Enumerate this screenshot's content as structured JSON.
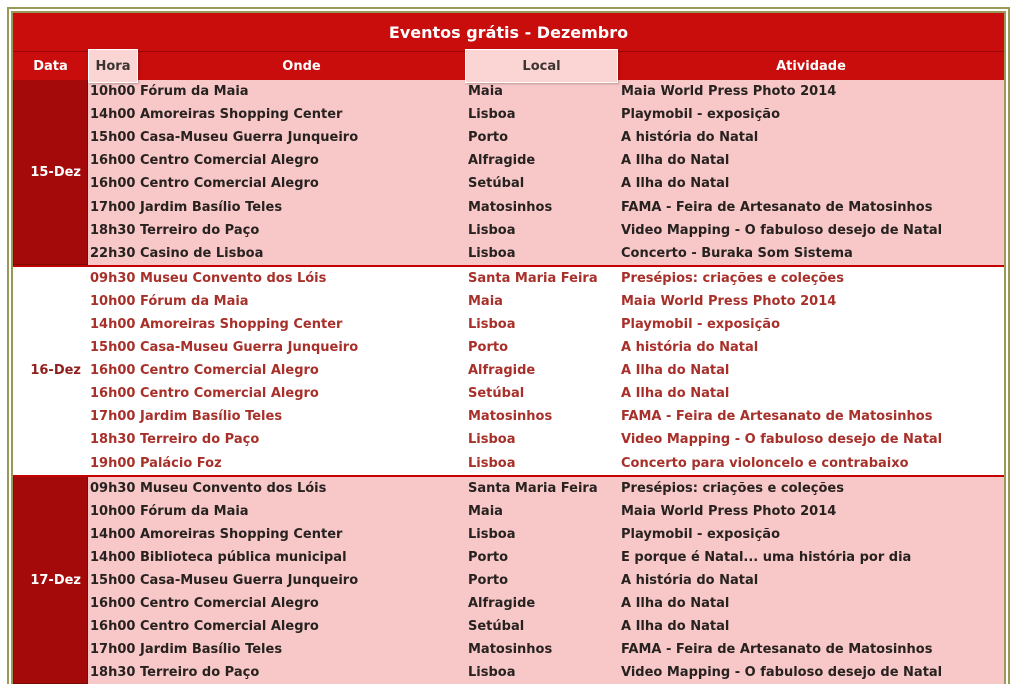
{
  "title": "Eventos grátis - Dezembro",
  "colors": {
    "header_red": "#c90d0d",
    "date_cell_red": "#a50a0a",
    "section_pink": "#f8c8c8",
    "selected_header_pink": "#fbd4d4",
    "section_separator_red": "#c40000",
    "outer_border_olive": "#9a9a58",
    "pink_section_text": "#272220",
    "white_section_text": "#a8302a"
  },
  "columns": [
    {
      "key": "data",
      "label": "Data",
      "highlighted": false
    },
    {
      "key": "hora",
      "label": "Hora",
      "highlighted": true
    },
    {
      "key": "onde",
      "label": "Onde",
      "highlighted": false
    },
    {
      "key": "local",
      "label": "Local",
      "highlighted": true
    },
    {
      "key": "atividade",
      "label": "Atividade",
      "highlighted": false
    }
  ],
  "sections": [
    {
      "date": "15-Dez",
      "style": "pink",
      "rows": [
        {
          "hora": "10h00",
          "onde": "Fórum da Maia",
          "local": "Maia",
          "atividade": "Maia World Press Photo 2014"
        },
        {
          "hora": "14h00",
          "onde": "Amoreiras Shopping Center",
          "local": "Lisboa",
          "atividade": "Playmobil - exposição"
        },
        {
          "hora": "15h00",
          "onde": "Casa-Museu Guerra Junqueiro",
          "local": "Porto",
          "atividade": "A história do Natal"
        },
        {
          "hora": "16h00",
          "onde": "Centro Comercial Alegro",
          "local": "Alfragide",
          "atividade": "A Ilha do Natal"
        },
        {
          "hora": "16h00",
          "onde": "Centro Comercial Alegro",
          "local": "Setúbal",
          "atividade": "A Ilha do Natal"
        },
        {
          "hora": "17h00",
          "onde": "Jardim Basílio Teles",
          "local": "Matosinhos",
          "atividade": "FAMA - Feira de Artesanato de Matosinhos"
        },
        {
          "hora": "18h30",
          "onde": "Terreiro do Paço",
          "local": "Lisboa",
          "atividade": "Video Mapping - O fabuloso desejo de Natal"
        },
        {
          "hora": "22h30",
          "onde": "Casino de Lisboa",
          "local": "Lisboa",
          "atividade": "Concerto - Buraka Som Sistema"
        }
      ]
    },
    {
      "date": "16-Dez",
      "style": "white",
      "rows": [
        {
          "hora": "09h30",
          "onde": "Museu Convento dos Lóis",
          "local": "Santa Maria Feira",
          "atividade": "Presépios: criações e coleções"
        },
        {
          "hora": "10h00",
          "onde": "Fórum da Maia",
          "local": "Maia",
          "atividade": "Maia World Press Photo 2014"
        },
        {
          "hora": "14h00",
          "onde": "Amoreiras Shopping Center",
          "local": "Lisboa",
          "atividade": "Playmobil - exposição"
        },
        {
          "hora": "15h00",
          "onde": "Casa-Museu Guerra Junqueiro",
          "local": "Porto",
          "atividade": "A história do Natal"
        },
        {
          "hora": "16h00",
          "onde": "Centro Comercial Alegro",
          "local": "Alfragide",
          "atividade": "A Ilha do Natal"
        },
        {
          "hora": "16h00",
          "onde": "Centro Comercial Alegro",
          "local": "Setúbal",
          "atividade": "A Ilha do Natal"
        },
        {
          "hora": "17h00",
          "onde": "Jardim Basílio Teles",
          "local": "Matosinhos",
          "atividade": "FAMA - Feira de Artesanato de Matosinhos"
        },
        {
          "hora": "18h30",
          "onde": "Terreiro do Paço",
          "local": "Lisboa",
          "atividade": "Video Mapping - O fabuloso desejo de Natal"
        },
        {
          "hora": "19h00",
          "onde": "Palácio Foz",
          "local": "Lisboa",
          "atividade": "Concerto para violoncelo e contrabaixo"
        }
      ]
    },
    {
      "date": "17-Dez",
      "style": "pink",
      "rows": [
        {
          "hora": "09h30",
          "onde": "Museu Convento dos Lóis",
          "local": "Santa Maria Feira",
          "atividade": "Presépios: criações e coleções"
        },
        {
          "hora": "10h00",
          "onde": "Fórum da Maia",
          "local": "Maia",
          "atividade": "Maia World Press Photo 2014"
        },
        {
          "hora": "14h00",
          "onde": "Amoreiras Shopping Center",
          "local": "Lisboa",
          "atividade": "Playmobil - exposição"
        },
        {
          "hora": "14h00",
          "onde": "Biblioteca pública municipal",
          "local": "Porto",
          "atividade": "E porque é Natal... uma história por dia"
        },
        {
          "hora": "15h00",
          "onde": "Casa-Museu Guerra Junqueiro",
          "local": "Porto",
          "atividade": "A história do Natal"
        },
        {
          "hora": "16h00",
          "onde": "Centro Comercial Alegro",
          "local": "Alfragide",
          "atividade": "A Ilha do Natal"
        },
        {
          "hora": "16h00",
          "onde": "Centro Comercial Alegro",
          "local": "Setúbal",
          "atividade": "A Ilha do Natal"
        },
        {
          "hora": "17h00",
          "onde": "Jardim Basílio Teles",
          "local": "Matosinhos",
          "atividade": "FAMA - Feira de Artesanato de Matosinhos"
        },
        {
          "hora": "18h30",
          "onde": "Terreiro do Paço",
          "local": "Lisboa",
          "atividade": "Video Mapping - O fabuloso desejo de Natal"
        }
      ]
    }
  ]
}
